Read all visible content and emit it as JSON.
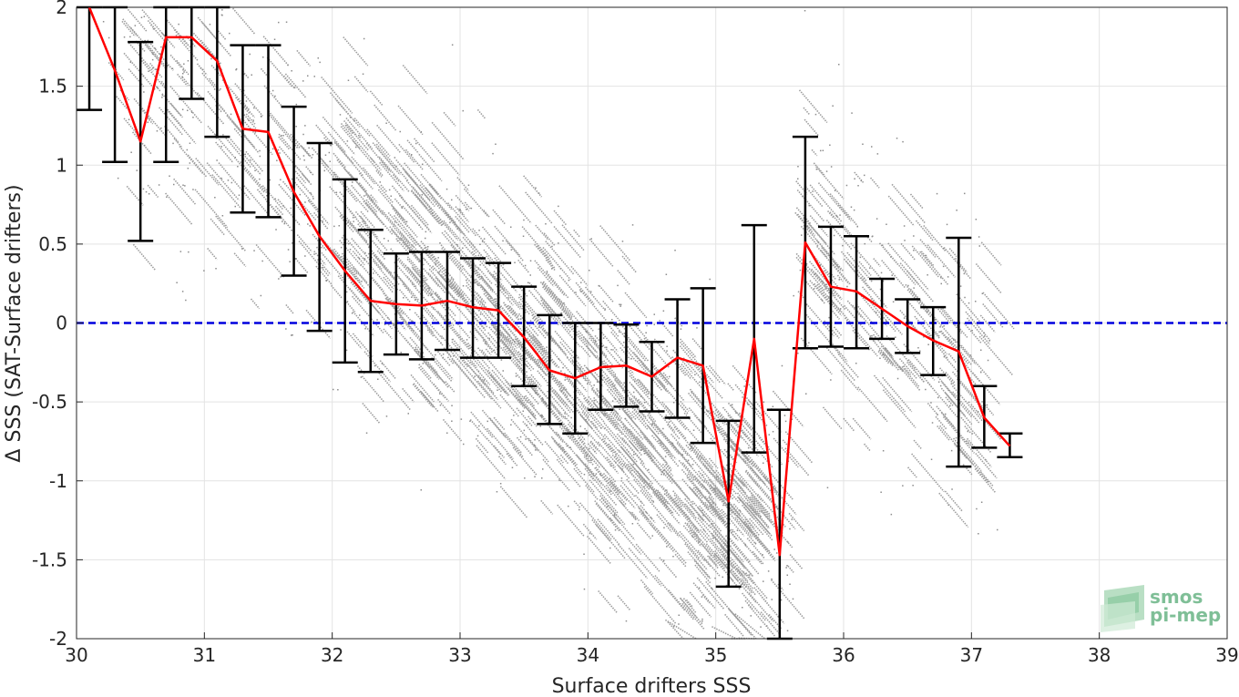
{
  "chart_data": {
    "type": "scatter",
    "title": "",
    "xlabel": "Surface drifters SSS",
    "ylabel": "Δ SSS (SAT-Surface drifters)",
    "xlim": [
      30,
      39
    ],
    "ylim": [
      -2,
      2
    ],
    "xticks": [
      "30",
      "31",
      "32",
      "33",
      "34",
      "35",
      "36",
      "37",
      "38",
      "39"
    ],
    "yticks": [
      "2",
      "1.5",
      "1",
      "0.5",
      "0",
      "-0.5",
      "-1",
      "-1.5",
      "-2"
    ],
    "grid": true,
    "reference_line": {
      "y": 0,
      "color": "#0000dd",
      "style": "dashed"
    },
    "scatter_color": "#8c8c8c",
    "scatter_description_only": true,
    "series": [
      {
        "kind": "binned-mean-with-errorbars",
        "line_color": "#ff0000",
        "errorbar_color": "#000000",
        "points": [
          {
            "x": 30.1,
            "y": 2.0,
            "low": 1.35,
            "high": 2.0
          },
          {
            "x": 30.3,
            "y": 1.6,
            "low": 1.02,
            "high": 2.0
          },
          {
            "x": 30.5,
            "y": 1.15,
            "low": 0.52,
            "high": 1.78
          },
          {
            "x": 30.7,
            "y": 1.81,
            "low": 1.02,
            "high": 2.0
          },
          {
            "x": 30.9,
            "y": 1.81,
            "low": 1.42,
            "high": 2.0
          },
          {
            "x": 31.1,
            "y": 1.66,
            "low": 1.18,
            "high": 2.0
          },
          {
            "x": 31.3,
            "y": 1.23,
            "low": 0.7,
            "high": 1.76
          },
          {
            "x": 31.5,
            "y": 1.21,
            "low": 0.67,
            "high": 1.76
          },
          {
            "x": 31.7,
            "y": 0.83,
            "low": 0.3,
            "high": 1.37
          },
          {
            "x": 31.9,
            "y": 0.55,
            "low": -0.05,
            "high": 1.14
          },
          {
            "x": 32.1,
            "y": 0.33,
            "low": -0.25,
            "high": 0.91
          },
          {
            "x": 32.3,
            "y": 0.14,
            "low": -0.31,
            "high": 0.59
          },
          {
            "x": 32.5,
            "y": 0.12,
            "low": -0.2,
            "high": 0.44
          },
          {
            "x": 32.7,
            "y": 0.11,
            "low": -0.23,
            "high": 0.45
          },
          {
            "x": 32.9,
            "y": 0.14,
            "low": -0.17,
            "high": 0.45
          },
          {
            "x": 33.1,
            "y": 0.1,
            "low": -0.22,
            "high": 0.41
          },
          {
            "x": 33.3,
            "y": 0.08,
            "low": -0.22,
            "high": 0.38
          },
          {
            "x": 33.5,
            "y": -0.09,
            "low": -0.4,
            "high": 0.23
          },
          {
            "x": 33.7,
            "y": -0.3,
            "low": -0.64,
            "high": 0.05
          },
          {
            "x": 33.9,
            "y": -0.35,
            "low": -0.7,
            "high": 0.0
          },
          {
            "x": 34.1,
            "y": -0.28,
            "low": -0.55,
            "high": 0.0
          },
          {
            "x": 34.3,
            "y": -0.27,
            "low": -0.53,
            "high": -0.01
          },
          {
            "x": 34.5,
            "y": -0.34,
            "low": -0.56,
            "high": -0.12
          },
          {
            "x": 34.7,
            "y": -0.22,
            "low": -0.6,
            "high": 0.15
          },
          {
            "x": 34.9,
            "y": -0.27,
            "low": -0.76,
            "high": 0.22
          },
          {
            "x": 35.1,
            "y": -1.13,
            "low": -1.67,
            "high": -0.62
          },
          {
            "x": 35.3,
            "y": -0.1,
            "low": -0.82,
            "high": 0.62
          },
          {
            "x": 35.5,
            "y": -1.47,
            "low": -2.0,
            "high": -0.55
          },
          {
            "x": 35.7,
            "y": 0.51,
            "low": -0.16,
            "high": 1.18
          },
          {
            "x": 35.9,
            "y": 0.23,
            "low": -0.15,
            "high": 0.61
          },
          {
            "x": 36.1,
            "y": 0.2,
            "low": -0.16,
            "high": 0.55
          },
          {
            "x": 36.3,
            "y": 0.09,
            "low": -0.1,
            "high": 0.28
          },
          {
            "x": 36.5,
            "y": -0.02,
            "low": -0.19,
            "high": 0.15
          },
          {
            "x": 36.7,
            "y": -0.11,
            "low": -0.33,
            "high": 0.1
          },
          {
            "x": 36.9,
            "y": -0.18,
            "low": -0.91,
            "high": 0.54
          },
          {
            "x": 37.1,
            "y": -0.6,
            "low": -0.79,
            "high": -0.4
          },
          {
            "x": 37.3,
            "y": -0.78,
            "low": -0.85,
            "high": -0.7
          }
        ]
      }
    ]
  },
  "logo": {
    "line1": "smos",
    "line2": "pi-mep",
    "color": "#7fbf97"
  }
}
